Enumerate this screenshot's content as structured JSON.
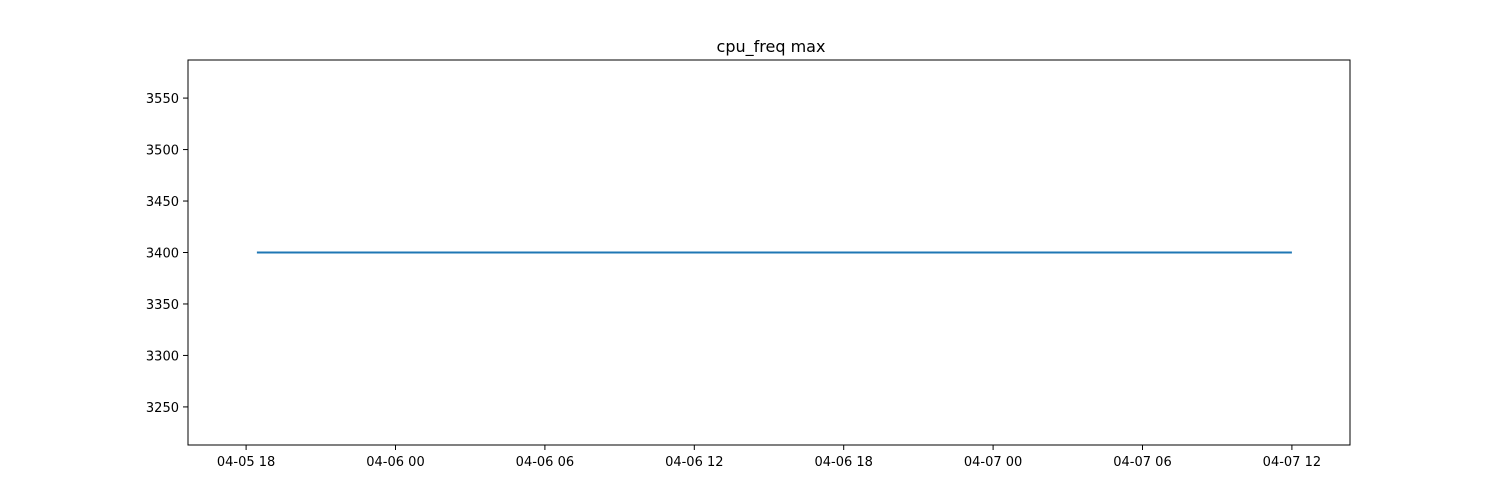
{
  "chart_data": {
    "type": "line",
    "title": "cpu_freq max",
    "xlabel": "",
    "ylabel": "",
    "x_range": [
      "2024-04-05 15:40",
      "2024-04-07 14:20"
    ],
    "ylim": [
      3213,
      3587
    ],
    "x_ticks": [
      {
        "value": "2024-04-05 18:00",
        "label": "04-05 18"
      },
      {
        "value": "2024-04-06 00:00",
        "label": "04-06 00"
      },
      {
        "value": "2024-04-06 06:00",
        "label": "04-06 06"
      },
      {
        "value": "2024-04-06 12:00",
        "label": "04-06 12"
      },
      {
        "value": "2024-04-06 18:00",
        "label": "04-06 18"
      },
      {
        "value": "2024-04-07 00:00",
        "label": "04-07 00"
      },
      {
        "value": "2024-04-07 06:00",
        "label": "04-07 06"
      },
      {
        "value": "2024-04-07 12:00",
        "label": "04-07 12"
      }
    ],
    "y_ticks": [
      3250,
      3300,
      3350,
      3400,
      3450,
      3500,
      3550
    ],
    "grid": false,
    "series": [
      {
        "color": "#1f77b4",
        "x": [
          "2024-04-05 18:26",
          "2024-04-07 12:00"
        ],
        "y": [
          3400,
          3400
        ]
      }
    ]
  }
}
